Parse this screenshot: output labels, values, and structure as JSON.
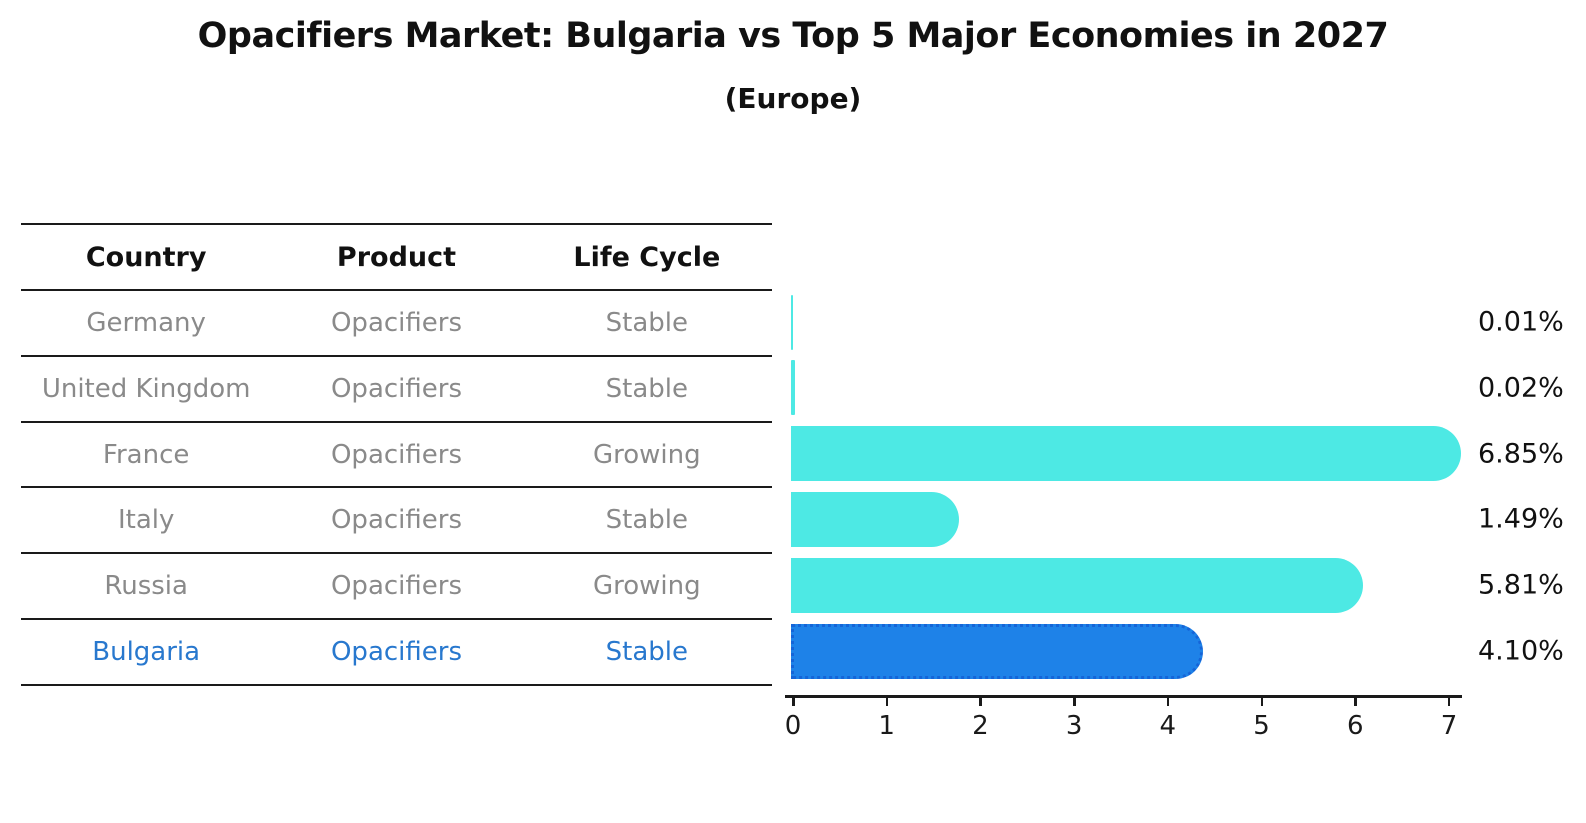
{
  "title": "Opacifiers Market: Bulgaria vs Top 5 Major Economies in 2027",
  "subtitle": "(Europe)",
  "table": {
    "headers": [
      "Country",
      "Product",
      "Life Cycle"
    ],
    "rows": [
      {
        "country": "Germany",
        "product": "Opacifiers",
        "life_cycle": "Stable",
        "highlighted": false
      },
      {
        "country": "United Kingdom",
        "product": "Opacifiers",
        "life_cycle": "Stable",
        "highlighted": false
      },
      {
        "country": "France",
        "product": "Opacifiers",
        "life_cycle": "Growing",
        "highlighted": false
      },
      {
        "country": "Italy",
        "product": "Opacifiers",
        "life_cycle": "Stable",
        "highlighted": false
      },
      {
        "country": "Russia",
        "product": "Opacifiers",
        "life_cycle": "Growing",
        "highlighted": false
      },
      {
        "country": "Bulgaria",
        "product": "Opacifiers",
        "life_cycle": "Stable",
        "highlighted": true
      }
    ]
  },
  "chart_data": {
    "type": "bar",
    "orientation": "horizontal",
    "categories": [
      "Germany",
      "United Kingdom",
      "France",
      "Italy",
      "Russia",
      "Bulgaria"
    ],
    "values": [
      0.01,
      0.02,
      6.85,
      1.49,
      5.81,
      4.1
    ],
    "value_labels": [
      "0.01%",
      "0.02%",
      "6.85%",
      "1.49%",
      "5.81%",
      "4.10%"
    ],
    "xlim": [
      0,
      7
    ],
    "x_ticks": [
      "0",
      "1",
      "2",
      "3",
      "4",
      "5",
      "6",
      "7"
    ],
    "grid": false,
    "legend": false,
    "highlight_index": 5,
    "bar_color": "#4DE9E4",
    "highlight_bar_color": "#1E82E8",
    "highlight_border_color": "#1565D8",
    "highlight_text_color": "#2878CE"
  }
}
